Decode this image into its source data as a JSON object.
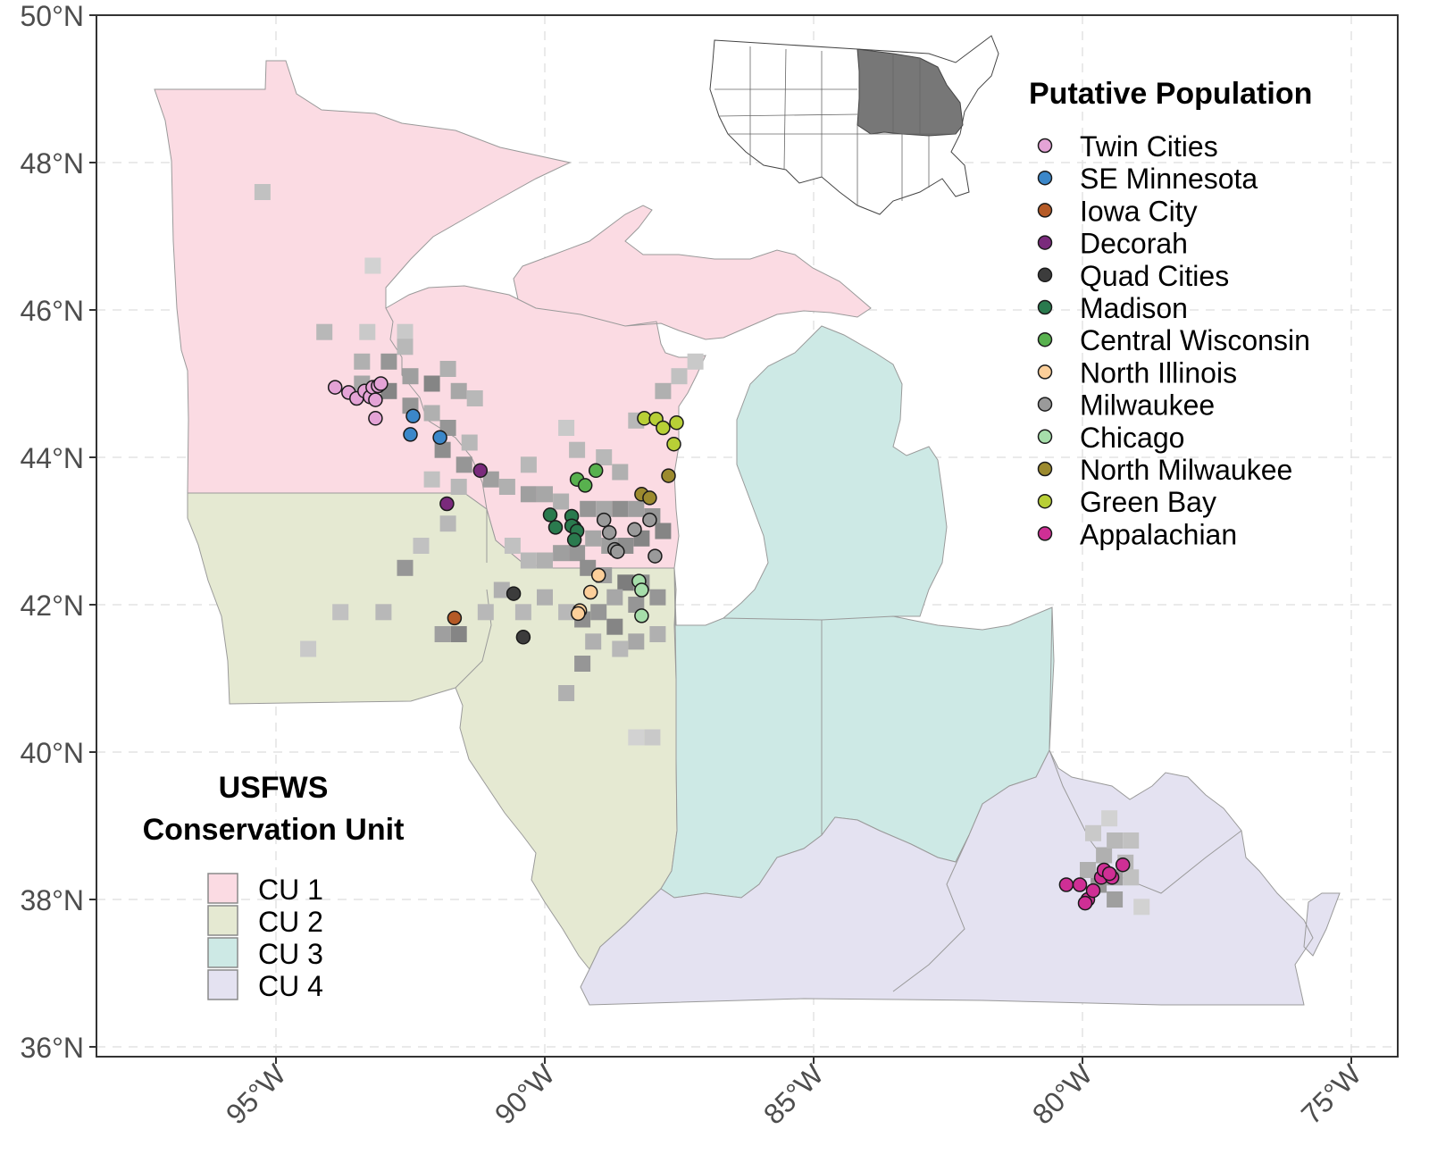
{
  "map": {
    "axes": {
      "y_ticks": [
        "50°N",
        "48°N",
        "46°N",
        "44°N",
        "42°N",
        "40°N",
        "38°N",
        "36°N"
      ],
      "x_ticks": [
        "95°W",
        "90°W",
        "85°W",
        "80°W",
        "75°W"
      ],
      "lon_range": [
        -98.3,
        -74.1
      ],
      "lat_range": [
        35.8,
        50.0
      ],
      "grid": true
    },
    "inset": {
      "description_label": "",
      "highlighted_color": "#777777"
    },
    "population_legend": {
      "title": "Putative Population",
      "placement": "top-right",
      "items": [
        {
          "label": "Twin Cities",
          "color": "#e4a3d6"
        },
        {
          "label": "SE Minnesota",
          "color": "#3b87c9"
        },
        {
          "label": "Iowa City",
          "color": "#b55a26"
        },
        {
          "label": "Decorah",
          "color": "#7a2a7c"
        },
        {
          "label": "Quad Cities",
          "color": "#3c3c3c"
        },
        {
          "label": "Madison",
          "color": "#2a7a4e"
        },
        {
          "label": "Central Wisconsin",
          "color": "#58b14e"
        },
        {
          "label": "North Illinois",
          "color": "#fccf9a"
        },
        {
          "label": "Milwaukee",
          "color": "#9a9a9a"
        },
        {
          "label": "Chicago",
          "color": "#a6deaa"
        },
        {
          "label": "North Milwaukee",
          "color": "#9c8a2e"
        },
        {
          "label": "Green Bay",
          "color": "#b8cf36"
        },
        {
          "label": "Appalachian",
          "color": "#cf2f95"
        }
      ]
    },
    "cu_legend": {
      "title_line1": "USFWS",
      "title_line2": "Conservation Unit",
      "placement": "bottom-left",
      "items": [
        {
          "label": "CU 1",
          "color": "#fbdbe3"
        },
        {
          "label": "CU 2",
          "color": "#e5e9d2"
        },
        {
          "label": "CU 3",
          "color": "#cde9e5"
        },
        {
          "label": "CU 4",
          "color": "#e4e2f1"
        }
      ]
    },
    "points": [
      {
        "pop": "Twin Cities",
        "lon": -93.9,
        "lat": 44.95
      },
      {
        "pop": "Twin Cities",
        "lon": -93.65,
        "lat": 44.88
      },
      {
        "pop": "Twin Cities",
        "lon": -93.5,
        "lat": 44.8
      },
      {
        "pop": "Twin Cities",
        "lon": -93.35,
        "lat": 44.9
      },
      {
        "pop": "Twin Cities",
        "lon": -93.25,
        "lat": 44.82
      },
      {
        "pop": "Twin Cities",
        "lon": -93.2,
        "lat": 44.95
      },
      {
        "pop": "Twin Cities",
        "lon": -93.1,
        "lat": 44.97
      },
      {
        "pop": "Twin Cities",
        "lon": -93.05,
        "lat": 45.0
      },
      {
        "pop": "Twin Cities",
        "lon": -93.15,
        "lat": 44.78
      },
      {
        "pop": "Twin Cities",
        "lon": -93.15,
        "lat": 44.53
      },
      {
        "pop": "SE Minnesota",
        "lon": -92.45,
        "lat": 44.56
      },
      {
        "pop": "SE Minnesota",
        "lon": -92.5,
        "lat": 44.31
      },
      {
        "pop": "SE Minnesota",
        "lon": -91.95,
        "lat": 44.27
      },
      {
        "pop": "Iowa City",
        "lon": -91.68,
        "lat": 41.82
      },
      {
        "pop": "Decorah",
        "lon": -91.2,
        "lat": 43.82
      },
      {
        "pop": "Decorah",
        "lon": -91.82,
        "lat": 43.37
      },
      {
        "pop": "Quad Cities",
        "lon": -90.58,
        "lat": 42.15
      },
      {
        "pop": "Quad Cities",
        "lon": -90.4,
        "lat": 41.56
      },
      {
        "pop": "Madison",
        "lon": -89.9,
        "lat": 43.22
      },
      {
        "pop": "Madison",
        "lon": -89.8,
        "lat": 43.05
      },
      {
        "pop": "Madison",
        "lon": -89.5,
        "lat": 43.2
      },
      {
        "pop": "Madison",
        "lon": -89.45,
        "lat": 43.05
      },
      {
        "pop": "Madison",
        "lon": -89.5,
        "lat": 43.07
      },
      {
        "pop": "Madison",
        "lon": -89.4,
        "lat": 43.0
      },
      {
        "pop": "Madison",
        "lon": -89.45,
        "lat": 42.88
      },
      {
        "pop": "Central Wisconsin",
        "lon": -89.4,
        "lat": 43.7
      },
      {
        "pop": "Central Wisconsin",
        "lon": -89.25,
        "lat": 43.62
      },
      {
        "pop": "Central Wisconsin",
        "lon": -89.05,
        "lat": 43.82
      },
      {
        "pop": "North Illinois",
        "lon": -89.0,
        "lat": 42.4
      },
      {
        "pop": "North Illinois",
        "lon": -89.15,
        "lat": 42.17
      },
      {
        "pop": "North Illinois",
        "lon": -89.35,
        "lat": 41.92
      },
      {
        "pop": "North Illinois",
        "lon": -89.38,
        "lat": 41.88
      },
      {
        "pop": "Milwaukee",
        "lon": -88.9,
        "lat": 43.15
      },
      {
        "pop": "Milwaukee",
        "lon": -88.8,
        "lat": 42.98
      },
      {
        "pop": "Milwaukee",
        "lon": -88.7,
        "lat": 42.75
      },
      {
        "pop": "Milwaukee",
        "lon": -88.65,
        "lat": 42.72
      },
      {
        "pop": "Milwaukee",
        "lon": -88.33,
        "lat": 43.02
      },
      {
        "pop": "Milwaukee",
        "lon": -88.05,
        "lat": 43.15
      },
      {
        "pop": "Milwaukee",
        "lon": -87.95,
        "lat": 42.66
      },
      {
        "pop": "Chicago",
        "lon": -88.25,
        "lat": 42.32
      },
      {
        "pop": "Chicago",
        "lon": -88.2,
        "lat": 42.2
      },
      {
        "pop": "Chicago",
        "lon": -88.2,
        "lat": 41.85
      },
      {
        "pop": "North Milwaukee",
        "lon": -88.2,
        "lat": 43.5
      },
      {
        "pop": "North Milwaukee",
        "lon": -88.05,
        "lat": 43.45
      },
      {
        "pop": "North Milwaukee",
        "lon": -87.7,
        "lat": 43.75
      },
      {
        "pop": "Green Bay",
        "lon": -88.15,
        "lat": 44.53
      },
      {
        "pop": "Green Bay",
        "lon": -87.93,
        "lat": 44.52
      },
      {
        "pop": "Green Bay",
        "lon": -87.8,
        "lat": 44.4
      },
      {
        "pop": "Green Bay",
        "lon": -87.55,
        "lat": 44.47
      },
      {
        "pop": "Green Bay",
        "lon": -87.6,
        "lat": 44.18
      },
      {
        "pop": "Appalachian",
        "lon": -80.3,
        "lat": 38.2
      },
      {
        "pop": "Appalachian",
        "lon": -80.05,
        "lat": 38.2
      },
      {
        "pop": "Appalachian",
        "lon": -79.9,
        "lat": 38.0
      },
      {
        "pop": "Appalachian",
        "lon": -79.95,
        "lat": 37.95
      },
      {
        "pop": "Appalachian",
        "lon": -79.8,
        "lat": 38.12
      },
      {
        "pop": "Appalachian",
        "lon": -79.65,
        "lat": 38.3
      },
      {
        "pop": "Appalachian",
        "lon": -79.6,
        "lat": 38.4
      },
      {
        "pop": "Appalachian",
        "lon": -79.45,
        "lat": 38.3
      },
      {
        "pop": "Appalachian",
        "lon": -79.5,
        "lat": 38.35
      },
      {
        "pop": "Appalachian",
        "lon": -79.25,
        "lat": 38.47
      }
    ]
  }
}
